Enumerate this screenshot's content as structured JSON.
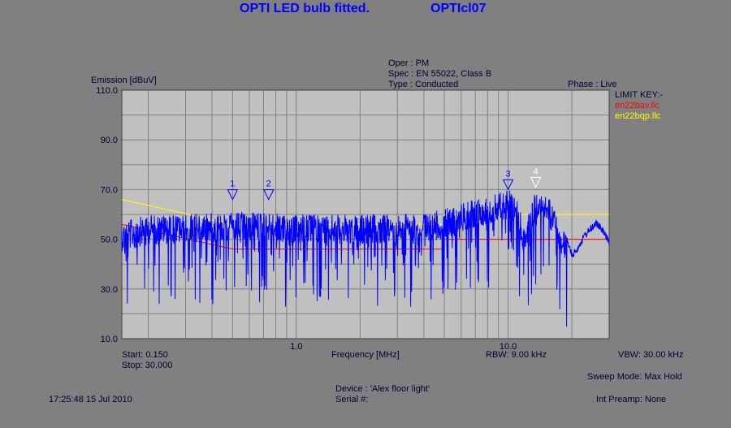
{
  "header": {
    "title": "OPTI LED bulb fitted.",
    "file_id": "OPTIcl07"
  },
  "meta": {
    "oper": "Oper : PM",
    "spec": "Spec : EN 55022, Class B",
    "type": "Type : Conducted",
    "phase": "Phase : Live"
  },
  "limit_key": {
    "title": "LIMIT KEY:-",
    "items": [
      {
        "name": "en22bav.llc",
        "color": "#ff0000"
      },
      {
        "name": "en22bqp.llc",
        "color": "#ffff00"
      }
    ]
  },
  "footer": {
    "start": "Start: 0.150",
    "stop": "Stop: 30.000",
    "rbw": "RBW: 9.00 kHz",
    "vbw": "VBW: 30.00 kHz",
    "sweep_mode": "Sweep Mode: Max Hold",
    "timestamp": "17:25:48 15 Jul 2010",
    "device": "Device : 'Alex floor light'",
    "serial": "Serial #:",
    "preamp": "Int Preamp: None"
  },
  "chart_data": {
    "type": "line",
    "xlabel": "Frequency [MHz]",
    "ylabel": "Emission [dBuV]",
    "x_scale": "log",
    "xlim": [
      0.15,
      30
    ],
    "ylim": [
      10,
      110
    ],
    "x_ticks": [
      {
        "value": 1,
        "label": "1.0"
      },
      {
        "value": 10,
        "label": "10.0"
      }
    ],
    "y_ticks": [
      {
        "value": 110,
        "label": "110.0"
      },
      {
        "value": 90,
        "label": "90.0"
      },
      {
        "value": 70,
        "label": "70.0"
      },
      {
        "value": 50,
        "label": "50.0"
      },
      {
        "value": 30,
        "label": "30.0"
      },
      {
        "value": 10,
        "label": "10.0"
      }
    ],
    "grid": true,
    "colors": {
      "trace": "#0000ff",
      "avg_limit": "#ff0000",
      "qp_limit": "#ffff00",
      "plot_bg": "#c0c0c0",
      "grid": "#808080"
    },
    "limits": [
      {
        "name": "en22bav.llc",
        "points": [
          [
            0.15,
            56
          ],
          [
            0.5,
            46
          ],
          [
            5,
            46
          ],
          [
            5,
            50
          ],
          [
            30,
            50
          ]
        ]
      },
      {
        "name": "en22bqp.llc",
        "points": [
          [
            0.15,
            66
          ],
          [
            0.5,
            56
          ],
          [
            5,
            56
          ],
          [
            5,
            60
          ],
          [
            30,
            60
          ]
        ]
      }
    ],
    "trace_envelope": [
      [
        0.15,
        57
      ],
      [
        0.2,
        60
      ],
      [
        0.3,
        60
      ],
      [
        0.5,
        61
      ],
      [
        0.7,
        61
      ],
      [
        1.0,
        60
      ],
      [
        2.0,
        60
      ],
      [
        3.0,
        60
      ],
      [
        4.0,
        61
      ],
      [
        5.0,
        62
      ],
      [
        6.0,
        65
      ],
      [
        8.0,
        68
      ],
      [
        10.0,
        71
      ],
      [
        11.0,
        66
      ],
      [
        12.0,
        55
      ],
      [
        13.0,
        66
      ],
      [
        14.0,
        72
      ],
      [
        15.0,
        70
      ],
      [
        17.0,
        60
      ],
      [
        19.0,
        51
      ],
      [
        20.0,
        45
      ],
      [
        21.0,
        47
      ],
      [
        23.0,
        53
      ],
      [
        26.0,
        58
      ],
      [
        28.0,
        55
      ],
      [
        30.0,
        50
      ]
    ],
    "markers": [
      {
        "label": "1",
        "x": 0.5,
        "y": 66
      },
      {
        "label": "2",
        "x": 0.74,
        "y": 66
      },
      {
        "label": "3",
        "x": 10.0,
        "y": 70
      },
      {
        "label": "4",
        "x": 13.5,
        "y": 71
      }
    ]
  }
}
